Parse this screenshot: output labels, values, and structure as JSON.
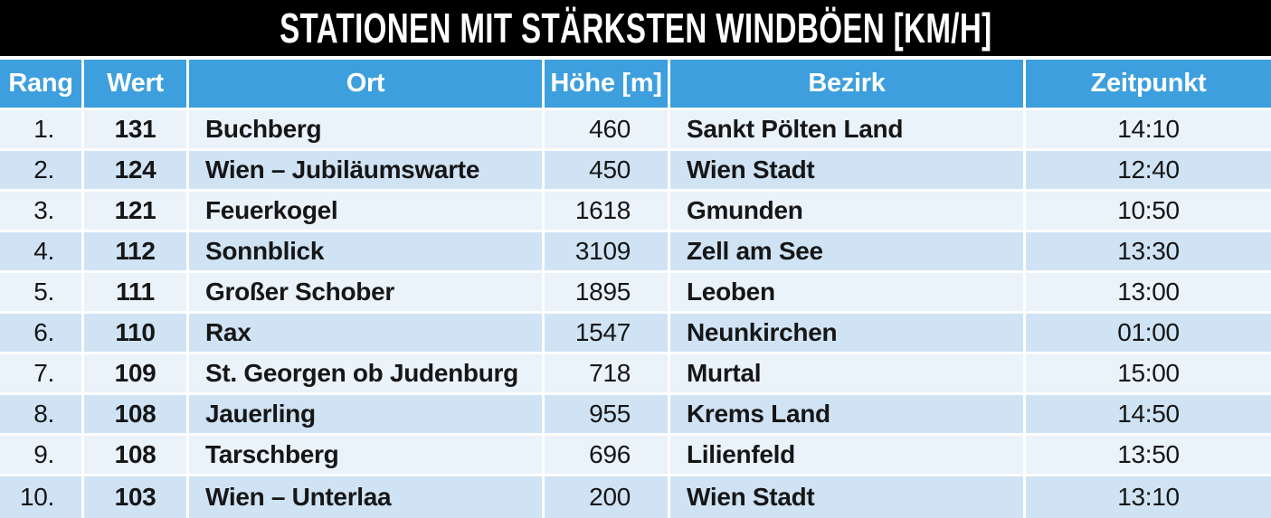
{
  "title": "STATIONEN MIT STÄRKSTEN WINDBÖEN [KM/H]",
  "colors": {
    "title_bg": "#000000",
    "title_text": "#ffffff",
    "header_bg": "#3d9fdd",
    "header_text": "#ffffff",
    "row_odd": "#eaf2fa",
    "row_even": "#cfe3f4",
    "cell_text": "#161616",
    "divider": "#ffffff"
  },
  "chart_data": {
    "type": "table",
    "title": "STATIONEN MIT STÄRKSTEN WINDBÖEN [KM/H]",
    "columns": [
      "Rang",
      "Wert",
      "Ort",
      "Höhe [m]",
      "Bezirk",
      "Zeitpunkt"
    ],
    "rows": [
      [
        "1.",
        "131",
        "Buchberg",
        "460",
        "Sankt Pölten Land",
        "14:10"
      ],
      [
        "2.",
        "124",
        "Wien – Jubiläumswarte",
        "450",
        "Wien Stadt",
        "12:40"
      ],
      [
        "3.",
        "121",
        "Feuerkogel",
        "1618",
        "Gmunden",
        "10:50"
      ],
      [
        "4.",
        "112",
        "Sonnblick",
        "3109",
        "Zell am See",
        "13:30"
      ],
      [
        "5.",
        "111",
        "Großer Schober",
        "1895",
        "Leoben",
        "13:00"
      ],
      [
        "6.",
        "110",
        "Rax",
        "1547",
        "Neunkirchen",
        "01:00"
      ],
      [
        "7.",
        "109",
        "St. Georgen ob Judenburg",
        "718",
        "Murtal",
        "15:00"
      ],
      [
        "8.",
        "108",
        "Jauerling",
        "955",
        "Krems Land",
        "14:50"
      ],
      [
        "9.",
        "108",
        "Tarschberg",
        "696",
        "Lilienfeld",
        "13:50"
      ],
      [
        "10.",
        "103",
        "Wien – Unterlaa",
        "200",
        "Wien Stadt",
        "13:10"
      ]
    ]
  }
}
